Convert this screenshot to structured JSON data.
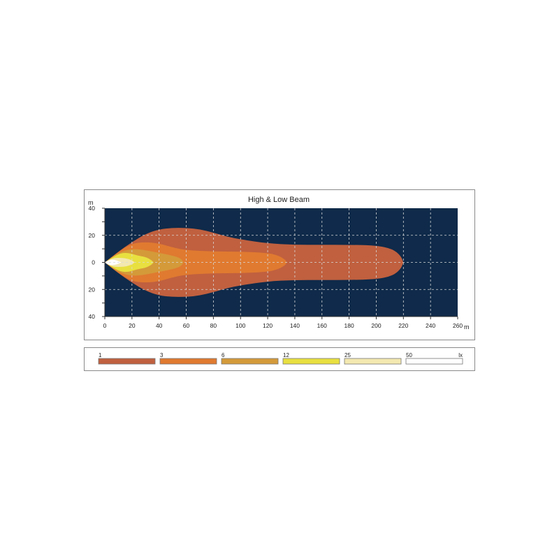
{
  "chart_data": {
    "type": "area",
    "title": "High & Low Beam",
    "ylabel": "m",
    "xlabel": "m",
    "xlim": [
      0,
      260
    ],
    "ylim": [
      -40,
      40
    ],
    "xticks": [
      0,
      20,
      40,
      60,
      80,
      100,
      120,
      140,
      160,
      180,
      200,
      220,
      240,
      260
    ],
    "yticks": [
      {
        "value": 40,
        "label": "40"
      },
      {
        "value": 20,
        "label": "20"
      },
      {
        "value": 0,
        "label": "0"
      },
      {
        "value": -20,
        "label": "20"
      },
      {
        "value": -40,
        "label": "40"
      }
    ],
    "grid": true,
    "background_color": "#0f2a4a",
    "legend": {
      "unit": "lx",
      "placement": "bottom",
      "entries": [
        {
          "label": "1",
          "color": "#c0603f"
        },
        {
          "label": "3",
          "color": "#e07a30"
        },
        {
          "label": "6",
          "color": "#d49a3a"
        },
        {
          "label": "12",
          "color": "#e8e040"
        },
        {
          "label": "25",
          "color": "#f3e8b0"
        },
        {
          "label": "50",
          "color": "#ffffff"
        }
      ]
    },
    "contours": [
      {
        "level": 1,
        "half_width": [
          [
            0,
            0
          ],
          [
            10,
            8
          ],
          [
            20,
            15
          ],
          [
            30,
            21
          ],
          [
            40,
            24.5
          ],
          [
            50,
            25.5
          ],
          [
            60,
            25.5
          ],
          [
            70,
            24.5
          ],
          [
            80,
            22
          ],
          [
            90,
            19
          ],
          [
            100,
            17
          ],
          [
            120,
            14
          ],
          [
            140,
            13
          ],
          [
            160,
            13
          ],
          [
            180,
            13
          ],
          [
            200,
            12.5
          ],
          [
            212,
            10
          ],
          [
            218,
            5
          ],
          [
            220,
            0
          ]
        ]
      },
      {
        "level": 3,
        "half_width": [
          [
            0,
            0
          ],
          [
            10,
            8
          ],
          [
            20,
            14
          ],
          [
            30,
            15
          ],
          [
            40,
            14
          ],
          [
            50,
            11
          ],
          [
            60,
            9
          ],
          [
            80,
            8
          ],
          [
            100,
            8
          ],
          [
            120,
            7
          ],
          [
            128,
            5
          ],
          [
            133,
            2
          ],
          [
            134,
            0
          ]
        ]
      },
      {
        "level": 6,
        "half_width": [
          [
            0,
            0
          ],
          [
            8,
            6
          ],
          [
            15,
            9
          ],
          [
            22,
            10
          ],
          [
            30,
            9
          ],
          [
            40,
            7
          ],
          [
            50,
            5
          ],
          [
            56,
            3
          ],
          [
            58,
            0
          ]
        ]
      },
      {
        "level": 12,
        "half_width": [
          [
            0,
            0
          ],
          [
            6,
            4
          ],
          [
            12,
            7
          ],
          [
            18,
            7
          ],
          [
            24,
            5
          ],
          [
            30,
            4
          ],
          [
            34,
            2
          ],
          [
            36,
            0
          ]
        ]
      },
      {
        "level": 25,
        "half_width": [
          [
            0,
            0
          ],
          [
            5,
            3
          ],
          [
            10,
            3.5
          ],
          [
            16,
            3
          ],
          [
            20,
            1.5
          ],
          [
            22,
            0
          ]
        ]
      },
      {
        "level": 50,
        "half_width": [
          [
            0,
            0
          ],
          [
            3,
            2
          ],
          [
            7,
            2
          ],
          [
            10,
            1
          ],
          [
            12,
            0
          ]
        ]
      }
    ]
  }
}
